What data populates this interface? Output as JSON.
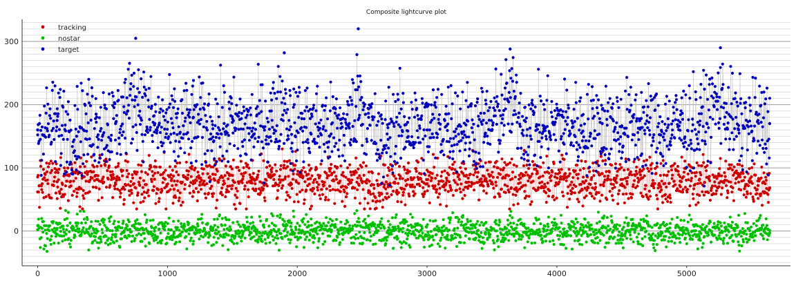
{
  "chart_data": {
    "type": "scatter",
    "title": "Composite lightcurve plot",
    "xlabel": "",
    "ylabel": "",
    "xlim": [
      -120,
      5800
    ],
    "ylim": [
      -55,
      335
    ],
    "x_ticks": [
      0,
      1000,
      2000,
      3000,
      4000,
      5000
    ],
    "y_ticks": [
      0,
      100,
      200,
      300
    ],
    "grid": true,
    "legend_position": "top-left",
    "series": [
      {
        "name": "tracking",
        "color": "#cc0000",
        "x_range": [
          0,
          5640
        ],
        "summary": {
          "center": 80,
          "spread": 18,
          "min": 35,
          "max": 130
        },
        "values": [
          [
            0,
            62
          ],
          [
            150,
            78
          ],
          [
            300,
            95
          ],
          [
            450,
            88
          ],
          [
            600,
            74
          ],
          [
            750,
            69
          ],
          [
            900,
            82
          ],
          [
            1050,
            66
          ],
          [
            1200,
            79
          ],
          [
            1350,
            90
          ],
          [
            1500,
            72
          ],
          [
            1650,
            85
          ],
          [
            1800,
            97
          ],
          [
            1950,
            76
          ],
          [
            2100,
            83
          ],
          [
            2250,
            71
          ],
          [
            2400,
            80
          ],
          [
            2550,
            64
          ],
          [
            2700,
            70
          ],
          [
            2850,
            92
          ],
          [
            3000,
            75
          ],
          [
            3150,
            84
          ],
          [
            3300,
            77
          ],
          [
            3450,
            81
          ],
          [
            3600,
            73
          ],
          [
            3750,
            88
          ],
          [
            3900,
            69
          ],
          [
            4050,
            86
          ],
          [
            4200,
            78
          ],
          [
            4350,
            91
          ],
          [
            4500,
            74
          ],
          [
            4650,
            83
          ],
          [
            4800,
            70
          ],
          [
            4950,
            79
          ],
          [
            5100,
            82
          ],
          [
            5250,
            76
          ],
          [
            5400,
            87
          ],
          [
            5550,
            72
          ],
          [
            5640,
            68
          ]
        ]
      },
      {
        "name": "nostar",
        "color": "#00c000",
        "x_range": [
          0,
          5640
        ],
        "summary": {
          "center": 0,
          "spread": 12,
          "min": -38,
          "max": 40
        },
        "values": [
          [
            0,
            2
          ],
          [
            150,
            -5
          ],
          [
            300,
            8
          ],
          [
            450,
            3
          ],
          [
            600,
            -9
          ],
          [
            750,
            5
          ],
          [
            900,
            0
          ],
          [
            1050,
            -4
          ],
          [
            1200,
            6
          ],
          [
            1350,
            1
          ],
          [
            1500,
            -7
          ],
          [
            1650,
            4
          ],
          [
            1800,
            -2
          ],
          [
            1950,
            7
          ],
          [
            2100,
            -6
          ],
          [
            2250,
            3
          ],
          [
            2400,
            -1
          ],
          [
            2550,
            5
          ],
          [
            2700,
            -3
          ],
          [
            2850,
            2
          ],
          [
            3000,
            -8
          ],
          [
            3150,
            4
          ],
          [
            3300,
            0
          ],
          [
            3450,
            -5
          ],
          [
            3600,
            6
          ],
          [
            3750,
            -2
          ],
          [
            3900,
            3
          ],
          [
            4050,
            -6
          ],
          [
            4200,
            1
          ],
          [
            4350,
            5
          ],
          [
            4500,
            -4
          ],
          [
            4650,
            2
          ],
          [
            4800,
            -7
          ],
          [
            4950,
            4
          ],
          [
            5100,
            -1
          ],
          [
            5250,
            3
          ],
          [
            5400,
            -5
          ],
          [
            5550,
            2
          ],
          [
            5640,
            -3
          ]
        ]
      },
      {
        "name": "target",
        "color": "#0000bb",
        "x_range": [
          0,
          5640
        ],
        "summary": {
          "center": 165,
          "spread": 35,
          "min": 40,
          "max": 320
        },
        "values": [
          [
            0,
            160
          ],
          [
            150,
            175
          ],
          [
            300,
            150
          ],
          [
            450,
            185
          ],
          [
            600,
            170
          ],
          [
            755,
            305
          ],
          [
            900,
            168
          ],
          [
            1050,
            155
          ],
          [
            1200,
            180
          ],
          [
            1350,
            162
          ],
          [
            1500,
            172
          ],
          [
            1650,
            158
          ],
          [
            1800,
            190
          ],
          [
            1900,
            282
          ],
          [
            1950,
            165
          ],
          [
            2100,
            178
          ],
          [
            2250,
            150
          ],
          [
            2400,
            170
          ],
          [
            2470,
            320
          ],
          [
            2550,
            180
          ],
          [
            2650,
            75
          ],
          [
            2700,
            145
          ],
          [
            2850,
            172
          ],
          [
            3000,
            160
          ],
          [
            3150,
            185
          ],
          [
            3300,
            168
          ],
          [
            3450,
            155
          ],
          [
            3640,
            288
          ],
          [
            3750,
            175
          ],
          [
            3900,
            162
          ],
          [
            4050,
            180
          ],
          [
            4200,
            158
          ],
          [
            4350,
            170
          ],
          [
            4500,
            165
          ],
          [
            4650,
            178
          ],
          [
            4800,
            152
          ],
          [
            4950,
            172
          ],
          [
            5100,
            168
          ],
          [
            5260,
            290
          ],
          [
            5400,
            160
          ],
          [
            5550,
            175
          ],
          [
            5640,
            170
          ]
        ]
      }
    ]
  }
}
